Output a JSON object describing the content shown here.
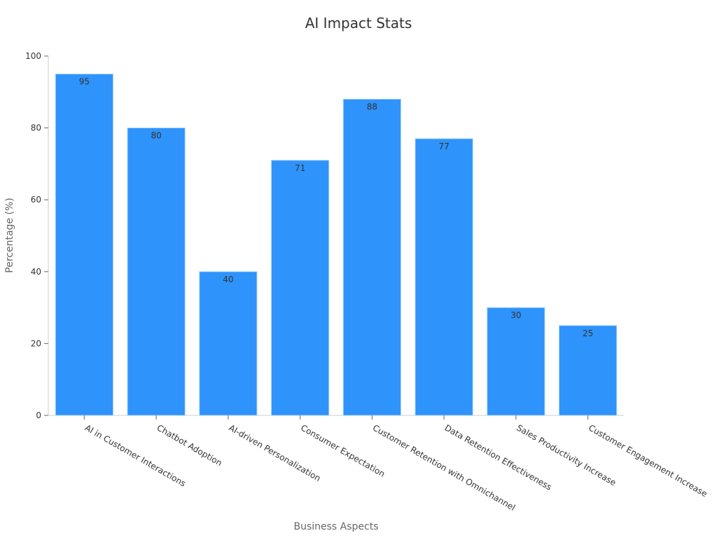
{
  "chart_data": {
    "type": "bar",
    "title": "AI Impact Stats",
    "xlabel": "Business Aspects",
    "ylabel": "Percentage (%)",
    "ylim": [
      0,
      100
    ],
    "yticks": [
      0,
      20,
      40,
      60,
      80,
      100
    ],
    "categories": [
      "AI in Customer Interactions",
      "Chatbot Adoption",
      "AI-driven Personalization",
      "Consumer Expectation",
      "Customer Retention with Omnichannel",
      "Data Retention Effectiveness",
      "Sales Productivity Increase",
      "Customer Engagement Increase"
    ],
    "values": [
      95,
      80,
      40,
      71,
      88,
      77,
      30,
      25
    ],
    "bar_color": "#2E93FA",
    "bar_border_color": "#A9D3FF",
    "grid": false,
    "legend": "none"
  }
}
